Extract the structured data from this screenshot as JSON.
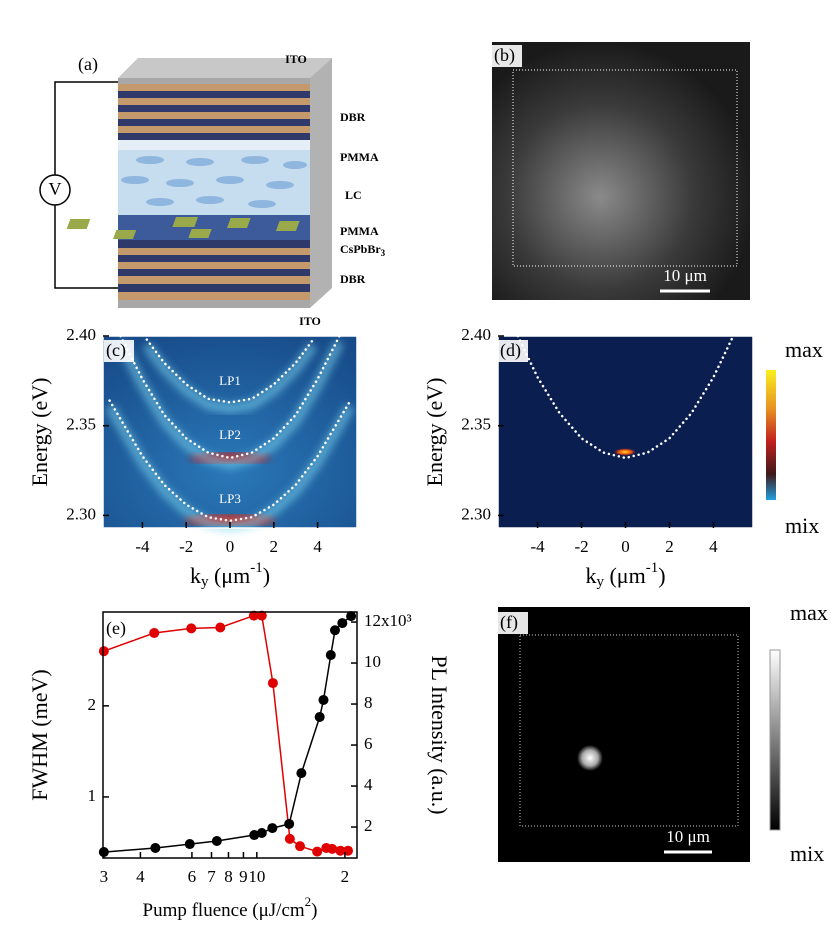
{
  "panel_labels": [
    "(a)",
    "(b)",
    "(c)",
    "(d)",
    "(e)",
    "(f)"
  ],
  "diagram": {
    "voltage": "V",
    "labels": {
      "ito_top": "ITO",
      "dbr_top": "DBR",
      "pmma_top": "PMMA",
      "lc": "LC",
      "pmma_bottom": "PMMA",
      "perovskite": "CsPbBr",
      "perovskite_sub": "3",
      "dbr_bottom": "DBR",
      "ito_bottom": "ITO"
    }
  },
  "images": {
    "b": {
      "scale_bar": "10 μm"
    },
    "f": {
      "scale_bar": "10 μm",
      "colorbar_max": "max",
      "colorbar_min": "mix"
    }
  },
  "chart_data": [
    {
      "type": "line",
      "ylabel": "Energy (eV)",
      "xlabel": {
        "base": "k",
        "sub": "y",
        "unit": " (μm",
        "sup": "-1",
        "end": ")"
      },
      "xlim": [
        -5.8,
        5.8
      ],
      "xticks": [
        -4,
        -2,
        0,
        2,
        4
      ],
      "ylim": [
        2.293,
        2.4
      ],
      "yticks": [
        {
          "value": 2.3,
          "label": "2.30"
        },
        2.35,
        {
          "value": 2.4,
          "label": "2.40"
        }
      ],
      "annotations": [
        "LP1",
        "LP2",
        "LP3"
      ],
      "series": [
        {
          "color": "#ffffff",
          "style": "dotted",
          "x": [
            -3.8,
            -3,
            -2,
            -1,
            0,
            1,
            2,
            3,
            3.8
          ],
          "values": [
            2.398,
            2.385,
            2.373,
            2.365,
            2.363,
            2.365,
            2.373,
            2.385,
            2.398
          ]
        },
        {
          "color": "#ffffff",
          "style": "dotted",
          "x": [
            -5,
            -4,
            -3,
            -2,
            -1,
            0,
            1,
            2,
            3,
            4,
            5
          ],
          "values": [
            2.4,
            2.376,
            2.356,
            2.343,
            2.335,
            2.332,
            2.335,
            2.343,
            2.356,
            2.376,
            2.4
          ]
        },
        {
          "color": "#ffffff",
          "style": "dotted",
          "x": [
            -5.5,
            -4,
            -3,
            -2,
            -1,
            0,
            1,
            2,
            3,
            4,
            5.5
          ],
          "values": [
            2.364,
            2.333,
            2.317,
            2.306,
            2.299,
            2.297,
            2.299,
            2.306,
            2.317,
            2.333,
            2.364
          ]
        }
      ]
    },
    {
      "type": "line",
      "ylabel": "Energy (eV)",
      "xlabel": {
        "base": "k",
        "sub": "y",
        "unit": " (μm",
        "sup": "-1",
        "end": ")"
      },
      "xlim": [
        -5.8,
        5.8
      ],
      "xticks": [
        -4,
        -2,
        0,
        2,
        4
      ],
      "ylim": [
        2.293,
        2.4
      ],
      "yticks": [
        {
          "value": 2.3,
          "label": "2.30"
        },
        2.35,
        {
          "value": 2.4,
          "label": "2.40"
        }
      ],
      "colorbar": {
        "max": "max",
        "min": "mix"
      },
      "series": [
        {
          "color": "#ffffff",
          "style": "dotted",
          "x": [
            -4.9,
            -4,
            -3,
            -2,
            -1,
            0,
            1,
            2,
            3,
            4,
            4.9
          ],
          "values": [
            2.4,
            2.377,
            2.357,
            2.343,
            2.335,
            2.332,
            2.335,
            2.343,
            2.357,
            2.377,
            2.4
          ]
        }
      ]
    },
    {
      "type": "line",
      "xscale": "log",
      "ylabel": "FWHM (meV)",
      "y2label": "PL Intensity (a.u.)",
      "xlabel": {
        "text": "Pump fluence (μJ/cm",
        "sup": "2",
        "end": ")"
      },
      "xlim": [
        2.98,
        22
      ],
      "xticks": [
        3,
        4,
        6,
        7,
        8,
        9,
        10,
        {
          "value": 20,
          "label": "2"
        }
      ],
      "ylim": [
        0.33,
        3.03
      ],
      "yticks": [
        1,
        2
      ],
      "y2lim": [
        0.49,
        12.49
      ],
      "y2ticks": [
        2,
        4,
        6,
        8,
        10,
        {
          "value": 12,
          "label": "12x10³"
        }
      ],
      "series": [
        {
          "color": "#e00000",
          "marker": true,
          "x": [
            3,
            4.46,
            5.97,
            7.5,
            9.77,
            10.4,
            11.35,
            12.97,
            14.05,
            16.08,
            17.27,
            18.1,
            19.3,
            20.5
          ],
          "values": [
            2.6,
            2.8,
            2.85,
            2.86,
            2.99,
            2.99,
            2.25,
            0.54,
            0.46,
            0.4,
            0.44,
            0.43,
            0.41,
            0.41
          ]
        },
        {
          "color": "#000000",
          "marker": true,
          "axis": "y2",
          "x": [
            3,
            4.5,
            5.9,
            7.3,
            9.8,
            10.4,
            11.3,
            12.9,
            14.2,
            16.4,
            16.9,
            17.9,
            18.5,
            19.6,
            21.0
          ],
          "values": [
            0.78,
            0.98,
            1.17,
            1.32,
            1.61,
            1.71,
            1.95,
            2.15,
            4.63,
            7.37,
            8.2,
            10.39,
            11.6,
            11.95,
            12.29
          ]
        }
      ]
    }
  ]
}
